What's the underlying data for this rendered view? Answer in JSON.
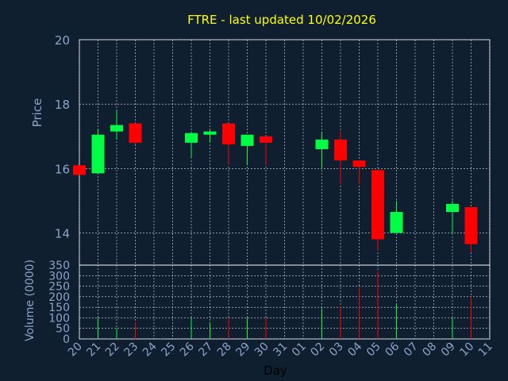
{
  "title": "FTRE - last updated 10/02/2026",
  "colors": {
    "background": "#0f1f30",
    "title": "#ffff00",
    "axis_text": "#8aa4c8",
    "frame": "#ffffff",
    "grid": "#ffffff",
    "up": "#00ff44",
    "down": "#ff0000",
    "wick": "#ffffff"
  },
  "chart_data": [
    {
      "type": "candlestick",
      "title": "FTRE - last updated 10/02/2026",
      "xlabel": "",
      "ylabel": "Price",
      "ylim": [
        13,
        20
      ],
      "yticks": [
        14,
        16,
        18,
        20
      ],
      "grid": true,
      "x": [
        "20",
        "21",
        "22",
        "23",
        "24",
        "25",
        "26",
        "27",
        "28",
        "29",
        "30",
        "31",
        "01",
        "02",
        "03",
        "04",
        "05",
        "06",
        "07",
        "08",
        "09",
        "10",
        "11"
      ],
      "candles": [
        {
          "day": "20",
          "open": 16.1,
          "high": 16.1,
          "low": 15.8,
          "close": 15.8
        },
        {
          "day": "21",
          "open": 15.85,
          "high": 17.2,
          "low": 15.85,
          "close": 17.05
        },
        {
          "day": "22",
          "open": 17.15,
          "high": 17.8,
          "low": 16.9,
          "close": 17.35
        },
        {
          "day": "23",
          "open": 17.4,
          "high": 17.4,
          "low": 16.75,
          "close": 16.8
        },
        {
          "day": "26",
          "open": 16.8,
          "high": 17.15,
          "low": 16.35,
          "close": 17.1
        },
        {
          "day": "27",
          "open": 17.05,
          "high": 17.2,
          "low": 16.8,
          "close": 17.15
        },
        {
          "day": "28",
          "open": 17.4,
          "high": 17.4,
          "low": 16.1,
          "close": 16.75
        },
        {
          "day": "29",
          "open": 16.7,
          "high": 17.05,
          "low": 16.1,
          "close": 17.05
        },
        {
          "day": "30",
          "open": 17.0,
          "high": 17.0,
          "low": 16.1,
          "close": 16.8
        },
        {
          "day": "02",
          "open": 16.6,
          "high": 17.15,
          "low": 16.0,
          "close": 16.9
        },
        {
          "day": "03",
          "open": 16.9,
          "high": 17.15,
          "low": 15.5,
          "close": 16.25
        },
        {
          "day": "04",
          "open": 16.25,
          "high": 16.25,
          "low": 15.5,
          "close": 16.05
        },
        {
          "day": "05",
          "open": 15.95,
          "high": 15.95,
          "low": 13.45,
          "close": 13.8
        },
        {
          "day": "06",
          "open": 14.0,
          "high": 15.0,
          "low": 14.0,
          "close": 14.65
        },
        {
          "day": "09",
          "open": 14.65,
          "high": 15.0,
          "low": 14.0,
          "close": 14.9
        },
        {
          "day": "10",
          "open": 14.8,
          "high": 14.8,
          "low": 13.4,
          "close": 13.65
        }
      ]
    },
    {
      "type": "bar",
      "title": "",
      "xlabel": "Day",
      "ylabel": "Volume (0000)",
      "ylim": [
        0,
        350
      ],
      "yticks": [
        0,
        50,
        100,
        150,
        200,
        250,
        300,
        350
      ],
      "grid": true,
      "categories": [
        "21",
        "22",
        "23",
        "26",
        "27",
        "28",
        "29",
        "30",
        "02",
        "03",
        "04",
        "05",
        "06",
        "09",
        "10"
      ],
      "values": [
        100,
        50,
        80,
        100,
        80,
        100,
        100,
        100,
        145,
        155,
        245,
        320,
        165,
        100,
        200
      ],
      "colors": [
        "up",
        "up",
        "down",
        "up",
        "up",
        "down",
        "up",
        "down",
        "up",
        "down",
        "down",
        "down",
        "up",
        "up",
        "down"
      ]
    }
  ]
}
